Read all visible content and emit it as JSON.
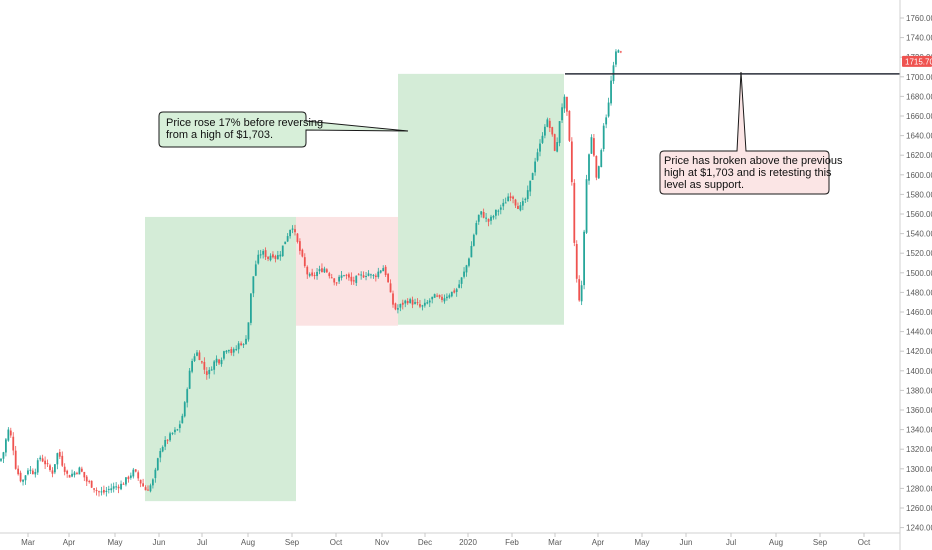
{
  "chart_data": {
    "type": "candlestick",
    "title": "",
    "xlabel": "",
    "ylabel": "",
    "ylim": [
      1236,
      1766
    ],
    "y_ticks": [
      "1760.00",
      "1740.00",
      "1720.00",
      "1700.00",
      "1680.00",
      "1660.00",
      "1640.00",
      "1620.00",
      "1600.00",
      "1580.00",
      "1560.00",
      "1540.00",
      "1520.00",
      "1500.00",
      "1480.00",
      "1460.00",
      "1440.00",
      "1420.00",
      "1400.00",
      "1380.00",
      "1360.00",
      "1340.00",
      "1320.00",
      "1300.00",
      "1280.00",
      "1260.00",
      "1240.00"
    ],
    "x_ticks": [
      "Mar",
      "Apr",
      "May",
      "Jun",
      "Jul",
      "Aug",
      "Sep",
      "Oct",
      "Nov",
      "Dec",
      "2020",
      "Feb",
      "Mar",
      "Apr",
      "May",
      "Jun",
      "Jul",
      "Aug",
      "Sep",
      "Oct"
    ],
    "last_price": "1715.70",
    "colors": {
      "up": "#26a69a",
      "down": "#ef5350",
      "rise_zone": "#d4ecd7",
      "fall_zone": "#fbe3e3",
      "resistance_line": "#2a2e39",
      "price_tag": "#ef5350"
    },
    "zones": [
      {
        "type": "rise",
        "from": "Jun",
        "to": "Sep",
        "low": 1267,
        "high": 1557
      },
      {
        "type": "fall",
        "from": "Sep",
        "to": "Nov",
        "low": 1446,
        "high": 1557
      },
      {
        "type": "rise",
        "from": "Nov",
        "to": "Mar",
        "low": 1447,
        "high": 1703
      }
    ],
    "resistance_level": 1703,
    "series": [
      {
        "anchors": [
          [
            0,
            1308
          ],
          [
            3,
            1315
          ],
          [
            8,
            1340
          ],
          [
            12,
            1330
          ],
          [
            16,
            1300
          ],
          [
            22,
            1286
          ],
          [
            28,
            1300
          ],
          [
            34,
            1296
          ],
          [
            40,
            1312
          ],
          [
            46,
            1305
          ],
          [
            52,
            1295
          ],
          [
            58,
            1318
          ],
          [
            62,
            1306
          ],
          [
            68,
            1292
          ],
          [
            74,
            1296
          ],
          [
            80,
            1300
          ],
          [
            86,
            1288
          ],
          [
            92,
            1283
          ],
          [
            98,
            1276
          ],
          [
            104,
            1276
          ],
          [
            110,
            1280
          ],
          [
            116,
            1282
          ],
          [
            122,
            1284
          ],
          [
            128,
            1291
          ],
          [
            134,
            1298
          ],
          [
            140,
            1287
          ],
          [
            146,
            1278
          ],
          [
            150,
            1282
          ],
          [
            154,
            1290
          ],
          [
            160,
            1320
          ],
          [
            166,
            1328
          ],
          [
            172,
            1336
          ],
          [
            178,
            1340
          ],
          [
            184,
            1360
          ],
          [
            188,
            1390
          ],
          [
            192,
            1410
          ],
          [
            196,
            1420
          ],
          [
            200,
            1413
          ],
          [
            204,
            1402
          ],
          [
            208,
            1396
          ],
          [
            212,
            1405
          ],
          [
            216,
            1412
          ],
          [
            220,
            1410
          ],
          [
            224,
            1420
          ],
          [
            228,
            1425
          ],
          [
            232,
            1418
          ],
          [
            236,
            1422
          ],
          [
            240,
            1430
          ],
          [
            244,
            1425
          ],
          [
            248,
            1445
          ],
          [
            252,
            1490
          ],
          [
            256,
            1510
          ],
          [
            260,
            1520
          ],
          [
            264,
            1520
          ],
          [
            268,
            1515
          ],
          [
            272,
            1520
          ],
          [
            276,
            1515
          ],
          [
            280,
            1520
          ],
          [
            284,
            1530
          ],
          [
            288,
            1540
          ],
          [
            292,
            1550
          ],
          [
            296,
            1535
          ],
          [
            300,
            1522
          ],
          [
            304,
            1508
          ],
          [
            308,
            1497
          ],
          [
            312,
            1495
          ],
          [
            316,
            1500
          ],
          [
            320,
            1502
          ],
          [
            324,
            1505
          ],
          [
            328,
            1500
          ],
          [
            332,
            1496
          ],
          [
            336,
            1490
          ],
          [
            340,
            1495
          ],
          [
            344,
            1499
          ],
          [
            348,
            1495
          ],
          [
            352,
            1490
          ],
          [
            356,
            1494
          ],
          [
            360,
            1496
          ],
          [
            364,
            1498
          ],
          [
            368,
            1500
          ],
          [
            372,
            1496
          ],
          [
            376,
            1498
          ],
          [
            380,
            1503
          ],
          [
            384,
            1506
          ],
          [
            388,
            1490
          ],
          [
            392,
            1470
          ],
          [
            396,
            1462
          ],
          [
            400,
            1466
          ],
          [
            404,
            1470
          ],
          [
            408,
            1472
          ],
          [
            412,
            1470
          ],
          [
            416,
            1468
          ],
          [
            420,
            1465
          ],
          [
            424,
            1466
          ],
          [
            428,
            1470
          ],
          [
            432,
            1474
          ],
          [
            436,
            1476
          ],
          [
            440,
            1472
          ],
          [
            444,
            1475
          ],
          [
            448,
            1478
          ],
          [
            452,
            1480
          ],
          [
            456,
            1482
          ],
          [
            460,
            1490
          ],
          [
            464,
            1500
          ],
          [
            468,
            1512
          ],
          [
            472,
            1530
          ],
          [
            476,
            1550
          ],
          [
            480,
            1562
          ],
          [
            484,
            1558
          ],
          [
            488,
            1552
          ],
          [
            492,
            1556
          ],
          [
            496,
            1562
          ],
          [
            500,
            1566
          ],
          [
            504,
            1570
          ],
          [
            508,
            1578
          ],
          [
            512,
            1580
          ],
          [
            516,
            1570
          ],
          [
            520,
            1566
          ],
          [
            524,
            1572
          ],
          [
            528,
            1582
          ],
          [
            532,
            1600
          ],
          [
            536,
            1620
          ],
          [
            540,
            1630
          ],
          [
            544,
            1650
          ],
          [
            548,
            1655
          ],
          [
            552,
            1640
          ],
          [
            556,
            1620
          ],
          [
            560,
            1660
          ],
          [
            564,
            1680
          ],
          [
            568,
            1655
          ],
          [
            572,
            1590
          ],
          [
            574,
            1535
          ],
          [
            576,
            1500
          ],
          [
            578,
            1480
          ],
          [
            580,
            1470
          ],
          [
            582,
            1488
          ],
          [
            584,
            1540
          ],
          [
            586,
            1590
          ],
          [
            588,
            1610
          ],
          [
            590,
            1632
          ],
          [
            592,
            1640
          ],
          [
            594,
            1620
          ],
          [
            596,
            1600
          ],
          [
            598,
            1600
          ],
          [
            600,
            1615
          ],
          [
            602,
            1635
          ],
          [
            604,
            1655
          ],
          [
            606,
            1660
          ],
          [
            608,
            1665
          ],
          [
            610,
            1690
          ],
          [
            612,
            1700
          ],
          [
            614,
            1712
          ],
          [
            616,
            1725
          ],
          [
            618,
            1730
          ],
          [
            620,
            1728
          ],
          [
            622,
            1716
          ]
        ]
      }
    ]
  },
  "annotations": [
    {
      "id": "rise",
      "lines": [
        "Price rose 17% before reversing",
        "from a high of $1,703."
      ]
    },
    {
      "id": "breakout",
      "lines": [
        "Price has broken above the previous",
        "high at $1,703 and is retesting this",
        "level as support."
      ]
    }
  ]
}
